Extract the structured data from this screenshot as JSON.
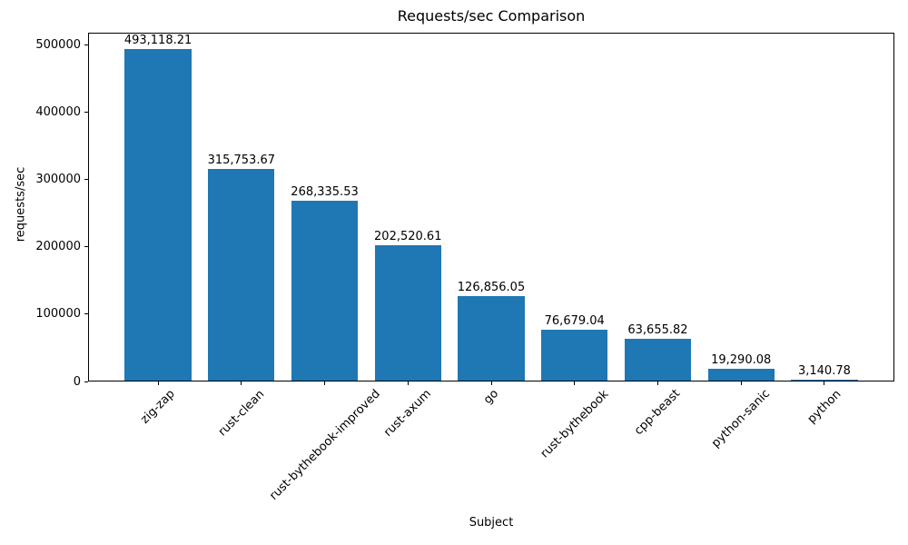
{
  "figure": {
    "background": "#ffffff",
    "text_color": "#000000"
  },
  "chart_data": {
    "type": "bar",
    "title": "Requests/sec Comparison",
    "xlabel": "Subject",
    "ylabel": "requests/sec",
    "categories": [
      "zig-zap",
      "rust-clean",
      "rust-bythebook-improved",
      "rust-axum",
      "go",
      "rust-bythebook",
      "cpp-beast",
      "python-sanic",
      "python"
    ],
    "values": [
      493118.21,
      315753.67,
      268335.53,
      202520.61,
      126856.05,
      76679.04,
      63655.82,
      19290.08,
      3140.78
    ],
    "value_labels": [
      "493,118.21",
      "315,753.67",
      "268,335.53",
      "202,520.61",
      "126,856.05",
      "76,679.04",
      "63,655.82",
      "19,290.08",
      "3,140.78"
    ],
    "yticks": [
      0,
      100000,
      200000,
      300000,
      400000,
      500000
    ],
    "ytick_labels": [
      "0",
      "100000",
      "200000",
      "300000",
      "400000",
      "500000"
    ],
    "ylim": [
      0,
      517774
    ],
    "bar_color": "#1f77b4",
    "grid": false,
    "legend": null
  }
}
